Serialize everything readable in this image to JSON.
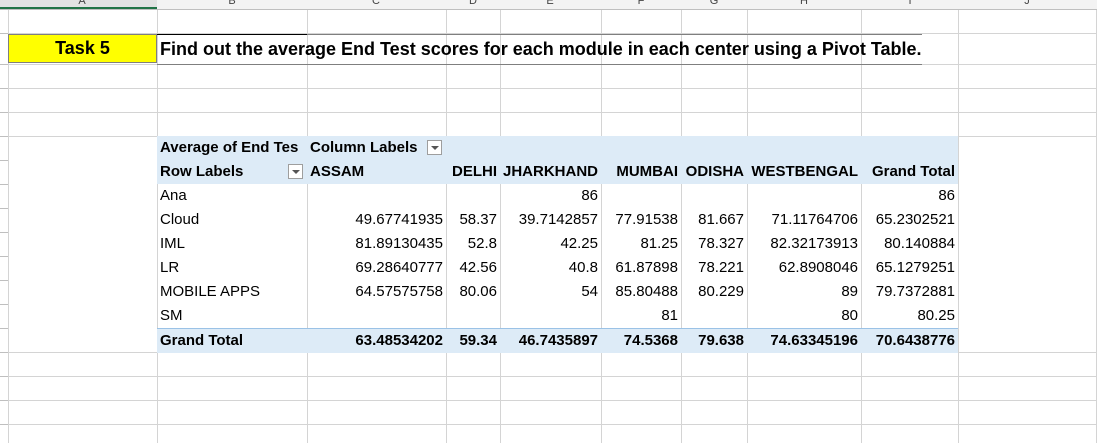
{
  "sheet": {
    "column_headers": [
      "A",
      "B",
      "C",
      "D",
      "E",
      "F",
      "G",
      "H",
      "I",
      "J"
    ]
  },
  "task": {
    "label": "Task 5",
    "text": "Find out the average End Test scores for each module in each center using a Pivot Table."
  },
  "pivot": {
    "value_field": "Average of End Test Scores",
    "value_field_shown": "Average of End Tes",
    "column_labels": "Column Labels",
    "row_labels": "Row Labels",
    "columns": [
      "ASSAM",
      "DELHI",
      "JHARKHAND",
      "MUMBAI",
      "ODISHA",
      "WESTBENGAL",
      "Grand Total"
    ],
    "rows": [
      {
        "label": "Ana",
        "values": [
          "",
          "",
          "86",
          "",
          "",
          "",
          "86"
        ]
      },
      {
        "label": "Cloud",
        "values": [
          "49.67741935",
          "58.37",
          "39.7142857",
          "77.91538",
          "81.667",
          "71.11764706",
          "65.2302521"
        ]
      },
      {
        "label": "IML",
        "values": [
          "81.89130435",
          "52.8",
          "42.25",
          "81.25",
          "78.327",
          "82.32173913",
          "80.140884"
        ]
      },
      {
        "label": "LR",
        "values": [
          "69.28640777",
          "42.56",
          "40.8",
          "61.87898",
          "78.221",
          "62.8908046",
          "65.1279251"
        ]
      },
      {
        "label": "MOBILE APPS",
        "values": [
          "64.57575758",
          "80.06",
          "54",
          "85.80488",
          "80.229",
          "89",
          "79.7372881"
        ]
      },
      {
        "label": "SM",
        "values": [
          "",
          "",
          "",
          "81",
          "",
          "80",
          "80.25"
        ]
      }
    ],
    "grand_total": {
      "label": "Grand Total",
      "values": [
        "63.48534202",
        "59.34",
        "46.7435897",
        "74.5368",
        "79.638",
        "74.63345196",
        "70.6438776"
      ]
    }
  }
}
